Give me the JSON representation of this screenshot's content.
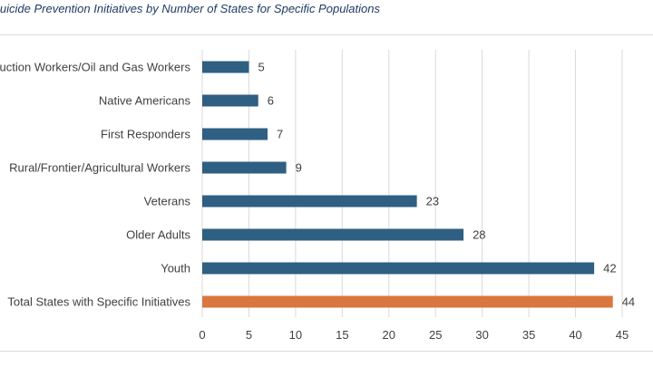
{
  "title": ": Suicide Prevention Initiatives by Number of  States for Specific Populations",
  "chart_data": {
    "type": "bar",
    "orientation": "horizontal",
    "title": ": Suicide Prevention Initiatives by Number of  States for Specific Populations",
    "categories": [
      "Construction Workers/Oil and Gas Workers",
      "Native Americans",
      "First Responders",
      "Rural/Frontier/Agricultural Workers",
      "Veterans",
      "Older Adults",
      "Youth",
      "Total States with Specific Initiatives"
    ],
    "category_display": [
      "ruction Workers/Oil and Gas Workers",
      "Native Americans",
      "First Responders",
      "Rural/Frontier/Agricultural Workers",
      "Veterans",
      "Older Adults",
      "Youth",
      "Total States with Specific Initiatives"
    ],
    "values": [
      5,
      6,
      7,
      9,
      23,
      28,
      42,
      44
    ],
    "bar_colors": [
      "#2f5f82",
      "#2f5f82",
      "#2f5f82",
      "#2f5f82",
      "#2f5f82",
      "#2f5f82",
      "#2f5f82",
      "#d9773e"
    ],
    "xlim": [
      0,
      45
    ],
    "xticks": [
      0,
      5,
      10,
      15,
      20,
      25,
      30,
      35,
      40,
      45
    ],
    "grid": "vertical",
    "xlabel": "",
    "ylabel": "",
    "data_labels": true
  }
}
